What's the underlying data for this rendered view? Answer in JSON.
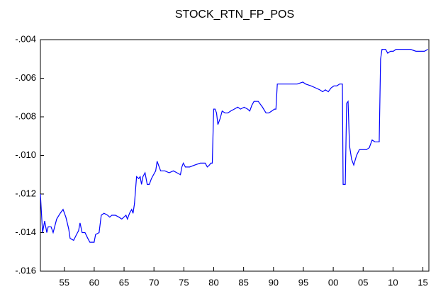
{
  "chart_data": {
    "type": "line",
    "title": "STOCK_RTN_FP_POS",
    "x": [
      1951.0,
      1951.36,
      1951.71,
      1952.07,
      1952.3,
      1952.78,
      1953.13,
      1953.72,
      1954.31,
      1954.79,
      1955.26,
      1955.73,
      1955.97,
      1956.56,
      1957.04,
      1957.39,
      1957.63,
      1957.98,
      1958.46,
      1958.93,
      1959.28,
      1959.99,
      1960.23,
      1960.82,
      1961.18,
      1961.65,
      1962.24,
      1962.6,
      1962.95,
      1963.54,
      1964.14,
      1964.61,
      1964.96,
      1965.32,
      1965.56,
      1965.91,
      1966.27,
      1966.5,
      1966.74,
      1967.09,
      1967.45,
      1967.69,
      1967.92,
      1968.16,
      1968.51,
      1968.87,
      1969.22,
      1969.58,
      1969.93,
      1970.29,
      1970.53,
      1970.76,
      1971.12,
      1971.83,
      1972.54,
      1973.25,
      1973.84,
      1974.43,
      1974.67,
      1974.91,
      1975.26,
      1975.97,
      1976.8,
      1977.75,
      1978.57,
      1978.93,
      1979.28,
      1979.52,
      1979.76,
      1979.99,
      1980.23,
      1980.47,
      1980.7,
      1981.06,
      1981.41,
      1981.89,
      1982.36,
      1982.83,
      1983.43,
      1984.02,
      1984.49,
      1985.08,
      1985.67,
      1986.03,
      1986.38,
      1986.74,
      1987.45,
      1988.16,
      1988.75,
      1989.22,
      1989.7,
      1990.17,
      1990.41,
      1990.64,
      1991.59,
      1992.78,
      1993.96,
      1994.91,
      1995.38,
      1996.33,
      1997.04,
      1997.75,
      1998.22,
      1998.69,
      1999.17,
      1999.64,
      2000.11,
      2000.59,
      2001.06,
      2001.53,
      2001.65,
      2002.01,
      2002.24,
      2002.48,
      2002.72,
      2003.07,
      2003.43,
      2003.9,
      2004.37,
      2004.85,
      2005.56,
      2006.03,
      2006.5,
      2006.98,
      2007.69,
      2007.92,
      2008.16,
      2008.75,
      2009.11,
      2009.58,
      2010.05,
      2010.53,
      2011.71,
      2012.89,
      2013.84,
      2015.26,
      2015.85
    ],
    "series": [
      {
        "color": "#0000ff",
        "values": [
          -0.012,
          -0.014,
          -0.0134,
          -0.014,
          -0.0137,
          -0.0137,
          -0.014,
          -0.0133,
          -0.013,
          -0.0128,
          -0.0132,
          -0.0138,
          -0.0143,
          -0.0144,
          -0.0141,
          -0.0139,
          -0.0135,
          -0.014,
          -0.014,
          -0.0143,
          -0.0145,
          -0.0145,
          -0.0141,
          -0.014,
          -0.0131,
          -0.013,
          -0.0131,
          -0.0132,
          -0.0131,
          -0.0131,
          -0.0132,
          -0.0133,
          -0.0132,
          -0.0131,
          -0.0133,
          -0.013,
          -0.0128,
          -0.013,
          -0.0125,
          -0.0111,
          -0.0112,
          -0.0111,
          -0.0115,
          -0.0111,
          -0.0109,
          -0.0115,
          -0.0115,
          -0.0112,
          -0.011,
          -0.0108,
          -0.0103,
          -0.0105,
          -0.0108,
          -0.0108,
          -0.0109,
          -0.0108,
          -0.0109,
          -0.011,
          -0.0106,
          -0.0104,
          -0.0106,
          -0.0106,
          -0.0105,
          -0.0104,
          -0.0104,
          -0.0106,
          -0.0105,
          -0.0104,
          -0.0104,
          -0.0076,
          -0.0076,
          -0.0078,
          -0.0084,
          -0.0081,
          -0.0077,
          -0.0078,
          -0.0078,
          -0.0077,
          -0.0076,
          -0.0075,
          -0.0076,
          -0.0075,
          -0.0076,
          -0.0077,
          -0.0074,
          -0.0072,
          -0.0072,
          -0.0075,
          -0.0078,
          -0.0078,
          -0.0077,
          -0.0076,
          -0.0076,
          -0.0063,
          -0.0063,
          -0.0063,
          -0.0063,
          -0.0062,
          -0.0063,
          -0.0064,
          -0.0065,
          -0.0066,
          -0.0067,
          -0.0066,
          -0.0067,
          -0.0065,
          -0.0064,
          -0.0064,
          -0.0063,
          -0.0063,
          -0.0115,
          -0.0115,
          -0.0073,
          -0.0072,
          -0.0095,
          -0.0102,
          -0.0105,
          -0.01,
          -0.0097,
          -0.0097,
          -0.0097,
          -0.0096,
          -0.0092,
          -0.0093,
          -0.0093,
          -0.005,
          -0.0045,
          -0.0045,
          -0.0047,
          -0.0046,
          -0.0046,
          -0.0045,
          -0.0045,
          -0.0045,
          -0.0046,
          -0.0046,
          -0.0045
        ]
      }
    ],
    "xlim": [
      1951,
      2016
    ],
    "xticks": [
      {
        "value": 1955,
        "label": "55"
      },
      {
        "value": 1960,
        "label": "60"
      },
      {
        "value": 1965,
        "label": "65"
      },
      {
        "value": 1970,
        "label": "70"
      },
      {
        "value": 1975,
        "label": "75"
      },
      {
        "value": 1980,
        "label": "80"
      },
      {
        "value": 1985,
        "label": "85"
      },
      {
        "value": 1990,
        "label": "90"
      },
      {
        "value": 1995,
        "label": "95"
      },
      {
        "value": 2000,
        "label": "00"
      },
      {
        "value": 2005,
        "label": "05"
      },
      {
        "value": 2010,
        "label": "10"
      },
      {
        "value": 2015,
        "label": "15"
      }
    ],
    "ylim": [
      -0.016,
      -0.004
    ],
    "yticks": [
      {
        "value": -0.016,
        "label": "-.016"
      },
      {
        "value": -0.014,
        "label": "-.014"
      },
      {
        "value": -0.012,
        "label": "-.012"
      },
      {
        "value": -0.01,
        "label": "-.010"
      },
      {
        "value": -0.008,
        "label": "-.008"
      },
      {
        "value": -0.006,
        "label": "-.006"
      },
      {
        "value": -0.004,
        "label": "-.004"
      }
    ]
  }
}
